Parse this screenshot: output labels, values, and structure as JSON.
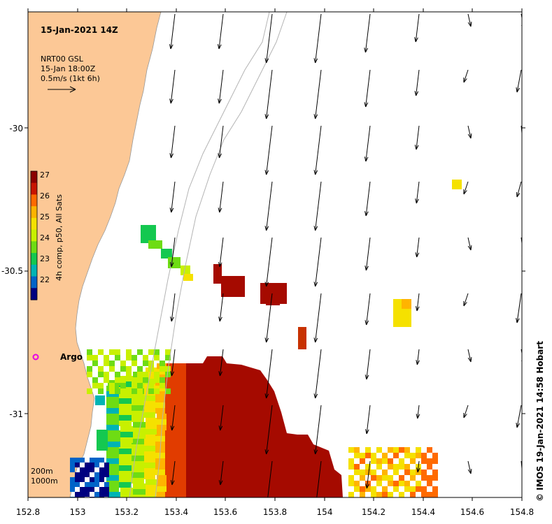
{
  "title": "15-Jan-2021 14Z",
  "legend": {
    "product": "NRT00 GSL",
    "time": "15-Jan 18:00Z",
    "scale": "0.5m/s (1kt 6h)"
  },
  "colorbar": {
    "label": "4h comp, p50, All Sats",
    "ticks": [
      "27",
      "26",
      "25",
      "24",
      "23",
      "22"
    ],
    "colors": [
      "#8b0000",
      "#c81400",
      "#ff6a00",
      "#ffb400",
      "#f5e100",
      "#c8f000",
      "#6edc14",
      "#14c850",
      "#00b4b4",
      "#0064c8",
      "#000080"
    ]
  },
  "axes": {
    "x_ticks": [
      "152.8",
      "153",
      "153.2",
      "153.4",
      "153.6",
      "153.8",
      "154",
      "154.2",
      "154.4",
      "154.6",
      "154.8"
    ],
    "y_ticks": [
      "-30",
      "-30.5",
      "-31"
    ]
  },
  "marker": {
    "label": "Argo"
  },
  "depth_legend": {
    "line1": "200m",
    "line2": "1000m"
  },
  "credit": "© IMOS 19-Jan-2021 14:58 Hobart",
  "colors": {
    "land": "#fcc896",
    "sst_hot": "#a50a00",
    "argo": "#e600e6"
  }
}
